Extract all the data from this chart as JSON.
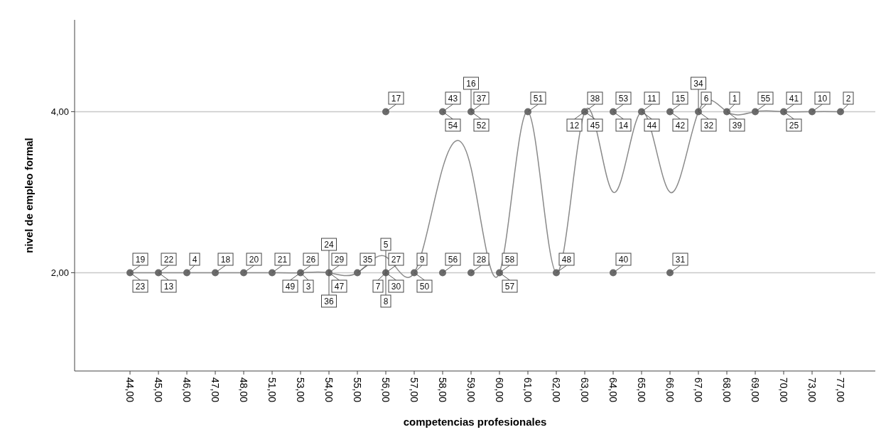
{
  "chart_data": {
    "type": "scatter",
    "xlabel": "competencias profesionales",
    "ylabel": "nivel de empleo formal",
    "categories": [
      "44,00",
      "45,00",
      "46,00",
      "47,00",
      "48,00",
      "51,00",
      "53,00",
      "54,00",
      "55,00",
      "56,00",
      "57,00",
      "58,00",
      "59,00",
      "60,00",
      "61,00",
      "62,00",
      "63,00",
      "64,00",
      "65,00",
      "66,00",
      "67,00",
      "68,00",
      "69,00",
      "70,00",
      "73,00",
      "77,00"
    ],
    "ylim": [
      0.78,
      5.14
    ],
    "yticks": [
      {
        "value": 2,
        "label": "2,00"
      },
      {
        "value": 4,
        "label": "4,00"
      }
    ],
    "grid": "y",
    "series": [
      {
        "type": "line",
        "color": "#8a8a8a",
        "values": [
          2,
          2,
          2,
          2,
          2,
          2,
          2,
          2,
          2,
          2.2,
          2,
          3.3,
          3.3,
          2,
          4,
          2,
          4,
          3,
          4,
          3,
          4,
          4,
          4,
          4,
          4,
          4
        ]
      },
      {
        "color": "#6b6b6b",
        "marker": "circle",
        "x": [
          "44,00",
          "45,00",
          "46,00",
          "47,00",
          "48,00",
          "51,00",
          "53,00",
          "54,00",
          "55,00",
          "56,00",
          "57,00",
          "58,00",
          "59,00",
          "60,00",
          "62,00",
          "64,00",
          "66,00",
          "56,00",
          "58,00",
          "59,00",
          "61,00",
          "63,00",
          "64,00",
          "65,00",
          "66,00",
          "67,00",
          "68,00",
          "69,00",
          "70,00",
          "73,00",
          "77,00"
        ],
        "values": [
          2,
          2,
          2,
          2,
          2,
          2,
          2,
          2,
          2,
          2,
          2,
          2,
          2,
          2,
          2,
          2,
          2,
          4,
          4,
          4,
          4,
          4,
          4,
          4,
          4,
          4,
          4,
          4,
          4,
          4,
          4
        ]
      }
    ],
    "annotations": [
      {
        "text": "19",
        "x": "44,00",
        "y": 2
      },
      {
        "text": "23",
        "x": "44,00",
        "y": 2
      },
      {
        "text": "22",
        "x": "45,00",
        "y": 2
      },
      {
        "text": "13",
        "x": "45,00",
        "y": 2
      },
      {
        "text": "4",
        "x": "46,00",
        "y": 2
      },
      {
        "text": "18",
        "x": "47,00",
        "y": 2
      },
      {
        "text": "20",
        "x": "48,00",
        "y": 2
      },
      {
        "text": "21",
        "x": "51,00",
        "y": 2
      },
      {
        "text": "26",
        "x": "53,00",
        "y": 2
      },
      {
        "text": "3",
        "x": "53,00",
        "y": 2
      },
      {
        "text": "49",
        "x": "53,00",
        "y": 2
      },
      {
        "text": "29",
        "x": "54,00",
        "y": 2
      },
      {
        "text": "47",
        "x": "54,00",
        "y": 2
      },
      {
        "text": "24",
        "x": "54,00",
        "y": 2
      },
      {
        "text": "36",
        "x": "54,00",
        "y": 2
      },
      {
        "text": "35",
        "x": "55,00",
        "y": 2
      },
      {
        "text": "27",
        "x": "56,00",
        "y": 2
      },
      {
        "text": "30",
        "x": "56,00",
        "y": 2
      },
      {
        "text": "7",
        "x": "56,00",
        "y": 2
      },
      {
        "text": "5",
        "x": "56,00",
        "y": 2
      },
      {
        "text": "8",
        "x": "56,00",
        "y": 2
      },
      {
        "text": "9",
        "x": "57,00",
        "y": 2
      },
      {
        "text": "50",
        "x": "57,00",
        "y": 2
      },
      {
        "text": "56",
        "x": "58,00",
        "y": 2
      },
      {
        "text": "28",
        "x": "59,00",
        "y": 2
      },
      {
        "text": "58",
        "x": "60,00",
        "y": 2
      },
      {
        "text": "57",
        "x": "60,00",
        "y": 2
      },
      {
        "text": "48",
        "x": "62,00",
        "y": 2
      },
      {
        "text": "40",
        "x": "64,00",
        "y": 2
      },
      {
        "text": "31",
        "x": "66,00",
        "y": 2
      },
      {
        "text": "17",
        "x": "56,00",
        "y": 4
      },
      {
        "text": "43",
        "x": "58,00",
        "y": 4
      },
      {
        "text": "54",
        "x": "58,00",
        "y": 4
      },
      {
        "text": "37",
        "x": "59,00",
        "y": 4
      },
      {
        "text": "52",
        "x": "59,00",
        "y": 4
      },
      {
        "text": "16",
        "x": "59,00",
        "y": 4
      },
      {
        "text": "51",
        "x": "61,00",
        "y": 4
      },
      {
        "text": "38",
        "x": "63,00",
        "y": 4
      },
      {
        "text": "45",
        "x": "63,00",
        "y": 4
      },
      {
        "text": "12",
        "x": "63,00",
        "y": 4
      },
      {
        "text": "53",
        "x": "64,00",
        "y": 4
      },
      {
        "text": "14",
        "x": "64,00",
        "y": 4
      },
      {
        "text": "11",
        "x": "65,00",
        "y": 4
      },
      {
        "text": "44",
        "x": "65,00",
        "y": 4
      },
      {
        "text": "15",
        "x": "66,00",
        "y": 4
      },
      {
        "text": "42",
        "x": "66,00",
        "y": 4
      },
      {
        "text": "6",
        "x": "67,00",
        "y": 4
      },
      {
        "text": "32",
        "x": "67,00",
        "y": 4
      },
      {
        "text": "34",
        "x": "67,00",
        "y": 4
      },
      {
        "text": "1",
        "x": "68,00",
        "y": 4
      },
      {
        "text": "39",
        "x": "68,00",
        "y": 4
      },
      {
        "text": "55",
        "x": "69,00",
        "y": 4
      },
      {
        "text": "41",
        "x": "70,00",
        "y": 4
      },
      {
        "text": "25",
        "x": "70,00",
        "y": 4
      },
      {
        "text": "10",
        "x": "73,00",
        "y": 4
      },
      {
        "text": "2",
        "x": "77,00",
        "y": 4
      }
    ]
  }
}
